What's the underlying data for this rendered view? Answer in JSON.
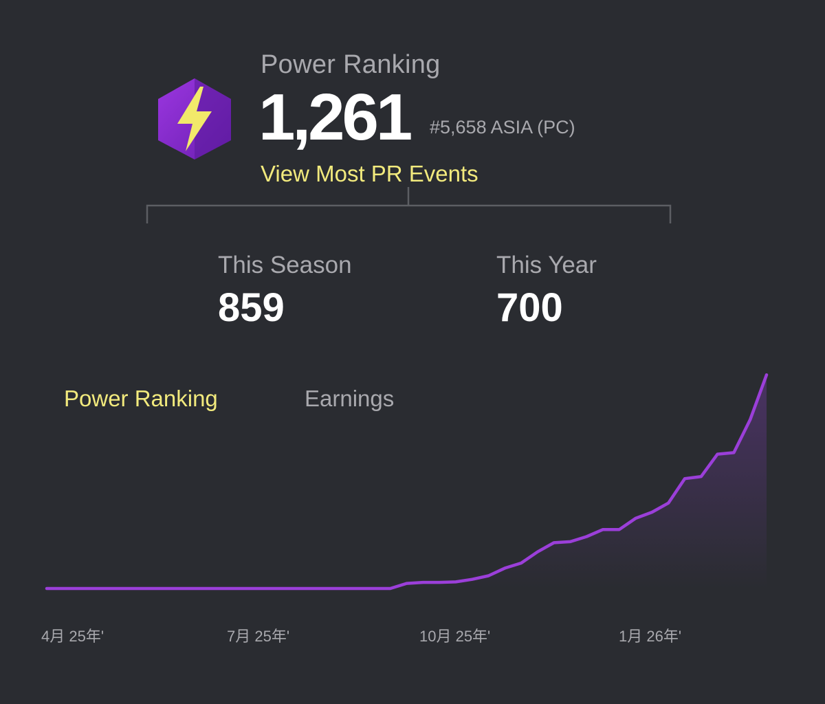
{
  "header": {
    "label": "Power Ranking",
    "value": "1,261",
    "rank": "#5,658 ASIA (PC)",
    "link": "View Most PR Events",
    "icon": "lightning-hexagon-icon"
  },
  "stats": {
    "season_label": "This Season",
    "season_value": "859",
    "year_label": "This Year",
    "year_value": "700"
  },
  "tabs": {
    "power_ranking": "Power Ranking",
    "earnings": "Earnings",
    "active": "Power Ranking"
  },
  "colors": {
    "background": "#2a2c31",
    "accent": "#f2ea7d",
    "line": "#9b3fd9",
    "muted": "#a9a9ae"
  },
  "chart_data": {
    "type": "line",
    "x_ticks": [
      "4月 25年'",
      "7月 25年'",
      "10月 25年'",
      "1月 26年'"
    ],
    "series": [
      {
        "values": [
          0,
          0,
          0,
          0,
          0,
          0,
          0,
          0,
          0,
          0,
          0,
          0,
          0,
          0,
          0,
          0,
          0,
          0,
          0,
          0,
          0,
          0,
          10,
          12,
          12,
          13,
          18,
          25,
          40,
          50,
          72,
          90,
          92,
          102,
          116,
          116,
          138,
          150,
          168,
          216,
          220,
          264,
          267,
          332,
          420
        ]
      }
    ]
  }
}
